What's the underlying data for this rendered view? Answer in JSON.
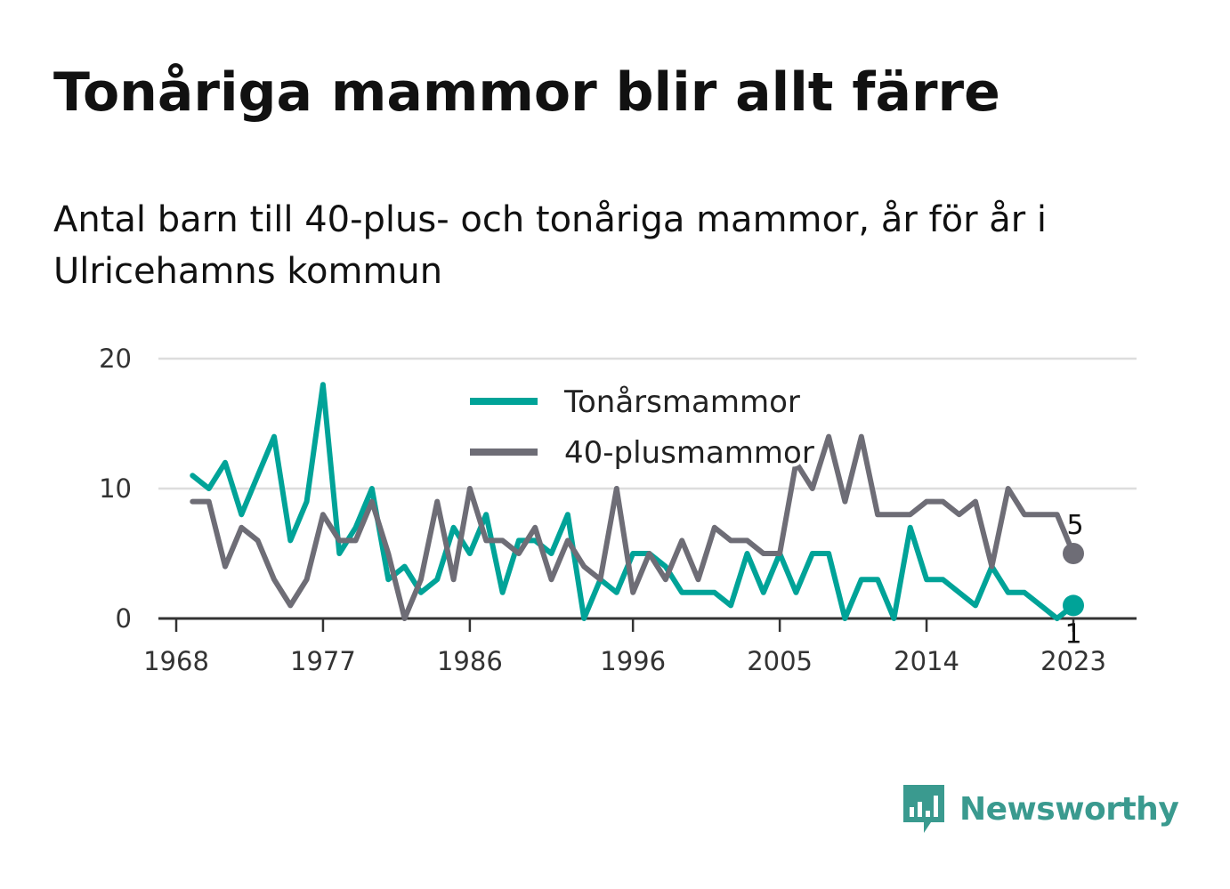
{
  "header": {
    "title": "Tonåriga mammor blir allt färre",
    "subtitle": "Antal barn till 40-plus- och tonåriga mammor, år för år i Ulricehamns kommun"
  },
  "brand": {
    "name": "Newsworthy",
    "icon": "bar-chart-speech-bubble-icon",
    "color": "#3a9a8f"
  },
  "chart_data": {
    "type": "line",
    "x": [
      1969,
      1970,
      1971,
      1972,
      1973,
      1974,
      1975,
      1976,
      1977,
      1978,
      1979,
      1980,
      1981,
      1982,
      1983,
      1984,
      1985,
      1986,
      1987,
      1988,
      1989,
      1990,
      1991,
      1992,
      1993,
      1994,
      1995,
      1996,
      1997,
      1998,
      1999,
      2000,
      2001,
      2002,
      2003,
      2004,
      2005,
      2006,
      2007,
      2008,
      2009,
      2010,
      2011,
      2012,
      2013,
      2014,
      2015,
      2016,
      2017,
      2018,
      2019,
      2020,
      2021,
      2022,
      2023
    ],
    "series": [
      {
        "name": "Tonårsmammor",
        "color": "#00a398",
        "values": [
          11,
          10,
          12,
          8,
          11,
          14,
          6,
          9,
          18,
          5,
          7,
          10,
          3,
          4,
          2,
          3,
          7,
          5,
          8,
          2,
          6,
          6,
          5,
          8,
          0,
          3,
          2,
          5,
          5,
          4,
          2,
          2,
          2,
          1,
          5,
          2,
          5,
          2,
          5,
          5,
          0,
          3,
          3,
          0,
          7,
          3,
          3,
          2,
          1,
          4,
          2,
          2,
          1,
          0,
          1
        ]
      },
      {
        "name": "40-plusmammor",
        "color": "#6e6d76",
        "values": [
          9,
          9,
          4,
          7,
          6,
          3,
          1,
          3,
          8,
          6,
          6,
          9,
          5,
          0,
          3,
          9,
          3,
          10,
          6,
          6,
          5,
          7,
          3,
          6,
          4,
          3,
          10,
          2,
          5,
          3,
          6,
          3,
          7,
          6,
          6,
          5,
          5,
          12,
          10,
          14,
          9,
          14,
          8,
          8,
          8,
          9,
          9,
          8,
          9,
          4,
          10,
          8,
          8,
          8,
          5
        ]
      }
    ],
    "x_ticks": [
      "1968",
      "1977",
      "1986",
      "1996",
      "2005",
      "2014",
      "2023"
    ],
    "y_ticks": [
      "0",
      "10",
      "20"
    ],
    "ylim": [
      0,
      20
    ],
    "end_labels": [
      "1",
      "5"
    ],
    "grid": true,
    "legend_position": "top-center",
    "xlabel": "",
    "ylabel": ""
  }
}
